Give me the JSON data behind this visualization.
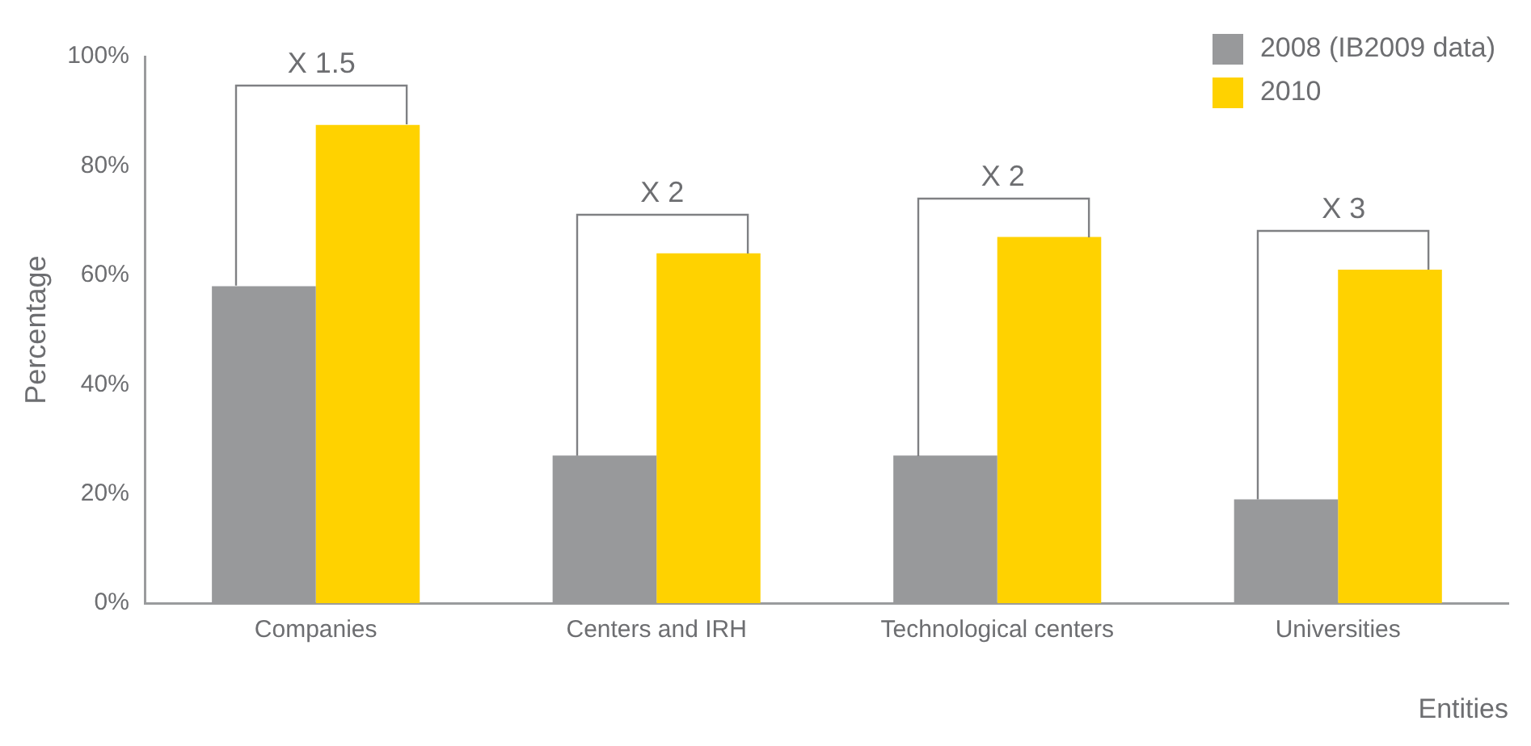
{
  "chart_data": {
    "type": "bar",
    "xlabel": "Entities",
    "ylabel": "Percentage",
    "categories": [
      "Companies",
      "Centers and IRH",
      "Technological centers",
      "Universities"
    ],
    "series": [
      {
        "name": "2008 (IB2009 data)",
        "color": "#98999b",
        "values": [
          58,
          27,
          27,
          19
        ]
      },
      {
        "name": "2010",
        "color": "#ffd200",
        "values": [
          87.5,
          64,
          67,
          61
        ]
      }
    ],
    "ylim": [
      0,
      100
    ],
    "yticks": [
      {
        "value": 0,
        "label": "0%"
      },
      {
        "value": 20,
        "label": "20%"
      },
      {
        "value": 40,
        "label": "40%"
      },
      {
        "value": 60,
        "label": "60%"
      },
      {
        "value": 80,
        "label": "80%"
      },
      {
        "value": 100,
        "label": "100%"
      }
    ],
    "annotations": [
      "X 1.5",
      "X 2",
      "X 2",
      "X 3"
    ],
    "grid": false,
    "legend": "top right"
  }
}
